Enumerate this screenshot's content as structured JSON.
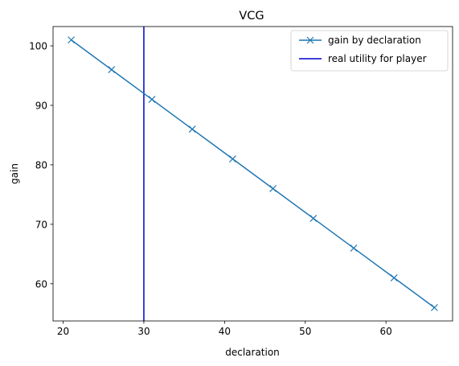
{
  "chart_data": {
    "type": "line",
    "title": "VCG",
    "xlabel": "declaration",
    "ylabel": "gain",
    "xlim": [
      18.75,
      68.25
    ],
    "ylim": [
      53.75,
      103.25
    ],
    "xticks": [
      20,
      30,
      40,
      50,
      60
    ],
    "yticks": [
      60,
      70,
      80,
      90,
      100
    ],
    "grid": false,
    "legend_position": "top-right",
    "series": [
      {
        "name": "gain by declaration",
        "marker": "x",
        "color": "#1f77b4",
        "x": [
          21,
          26,
          31,
          36,
          41,
          46,
          51,
          56,
          61,
          66
        ],
        "y": [
          101,
          96,
          91,
          86,
          81,
          76,
          71,
          66,
          61,
          56
        ]
      }
    ],
    "vlines": [
      {
        "name": "real utility for player",
        "x": 30,
        "color": "#0000cc"
      }
    ]
  }
}
